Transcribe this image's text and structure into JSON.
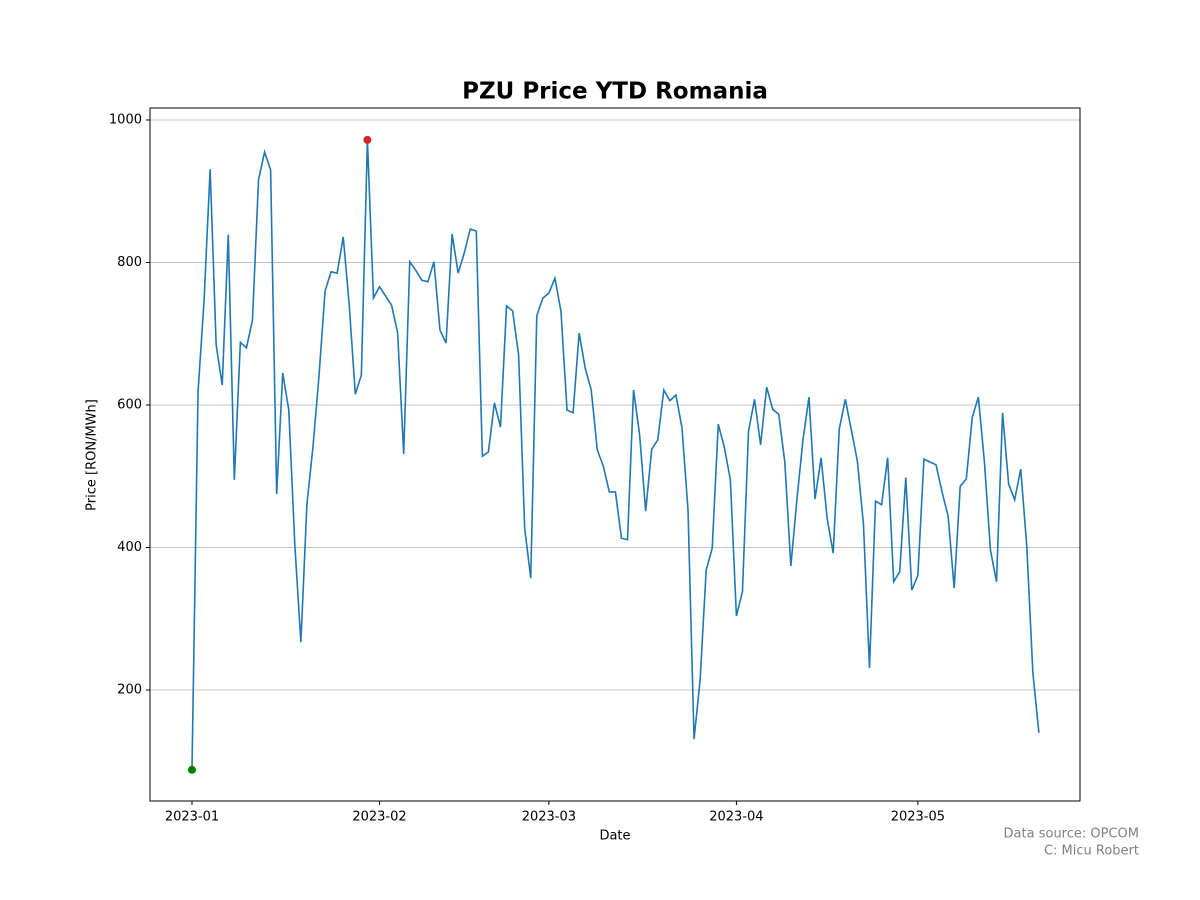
{
  "chart_data": {
    "type": "line",
    "title": "PZU Price YTD Romania",
    "x_label": "Date",
    "y_label": "Price [RON/MWh]",
    "annotations": [
      "Data source: OPCOM",
      "C: Micu Robert"
    ],
    "x": [
      0,
      1,
      2,
      3,
      4,
      5,
      6,
      7,
      8,
      9,
      10,
      11,
      12,
      13,
      14,
      15,
      16,
      17,
      18,
      19,
      20,
      21,
      22,
      23,
      24,
      25,
      26,
      27,
      28,
      29,
      30,
      31,
      32,
      33,
      34,
      35,
      36,
      37,
      38,
      39,
      40,
      41,
      42,
      43,
      44,
      45,
      46,
      47,
      48,
      49,
      50,
      51,
      52,
      53,
      54,
      55,
      56,
      57,
      58,
      59,
      60,
      61,
      62,
      63,
      64,
      65,
      66,
      67,
      68,
      69,
      70,
      71,
      72,
      73,
      74,
      75,
      76,
      77,
      78,
      79,
      80,
      81,
      82,
      83,
      84,
      85,
      86,
      87,
      88,
      89,
      90,
      91,
      92,
      93,
      94,
      95,
      96,
      97,
      98,
      99,
      100,
      101,
      102,
      103,
      104,
      105,
      106,
      107,
      108,
      109,
      110,
      111,
      112,
      113,
      114,
      115,
      116,
      117,
      118,
      119,
      120,
      121,
      122,
      123,
      124,
      125,
      126,
      127,
      128,
      129,
      130,
      131,
      132,
      133,
      134,
      135,
      136,
      137,
      138,
      139,
      140
    ],
    "series": [
      {
        "name": "PZU",
        "color": "#1f77b4",
        "values": [
          88,
          618,
          747,
          931,
          684,
          628,
          839,
          495,
          688,
          680,
          719,
          916,
          955,
          930,
          475,
          645,
          593,
          404,
          267,
          461,
          541,
          641,
          760,
          787,
          785,
          836,
          740,
          615,
          642,
          972,
          750,
          766,
          753,
          740,
          701,
          531,
          801,
          789,
          775,
          773,
          801,
          705,
          687,
          840,
          785,
          813,
          847,
          844,
          528,
          534,
          603,
          569,
          739,
          732,
          670,
          427,
          357,
          725,
          750,
          757,
          778,
          731,
          593,
          589,
          701,
          652,
          621,
          537,
          514,
          478,
          478,
          413,
          411,
          621,
          558,
          451,
          538,
          551,
          621,
          606,
          614,
          568,
          453,
          131,
          214,
          368,
          399,
          573,
          541,
          495,
          304,
          338,
          563,
          608,
          544,
          625,
          594,
          587,
          520,
          374,
          467,
          551,
          611,
          468,
          526,
          441,
          392,
          566,
          608,
          565,
          521,
          433,
          231,
          465,
          460,
          526,
          352,
          366,
          498,
          340,
          361,
          524,
          520,
          516,
          478,
          444,
          343,
          486,
          496,
          583,
          611,
          520,
          396,
          352,
          589,
          489,
          467,
          510,
          402,
          225,
          140
        ]
      }
    ],
    "min_point_color": "green",
    "max_point_color": "#d62728",
    "xlim": [
      -6.94,
      146.8
    ],
    "xticks": [
      {
        "value": 0,
        "label": "2023-01"
      },
      {
        "value": 31,
        "label": "2023-02"
      },
      {
        "value": 59,
        "label": "2023-03"
      },
      {
        "value": 90,
        "label": "2023-04"
      },
      {
        "value": 120,
        "label": "2023-05"
      }
    ],
    "ylim": [
      44.2,
      1016.8
    ],
    "yticks": [
      200,
      400,
      600,
      800,
      1000
    ],
    "grid": "y"
  }
}
